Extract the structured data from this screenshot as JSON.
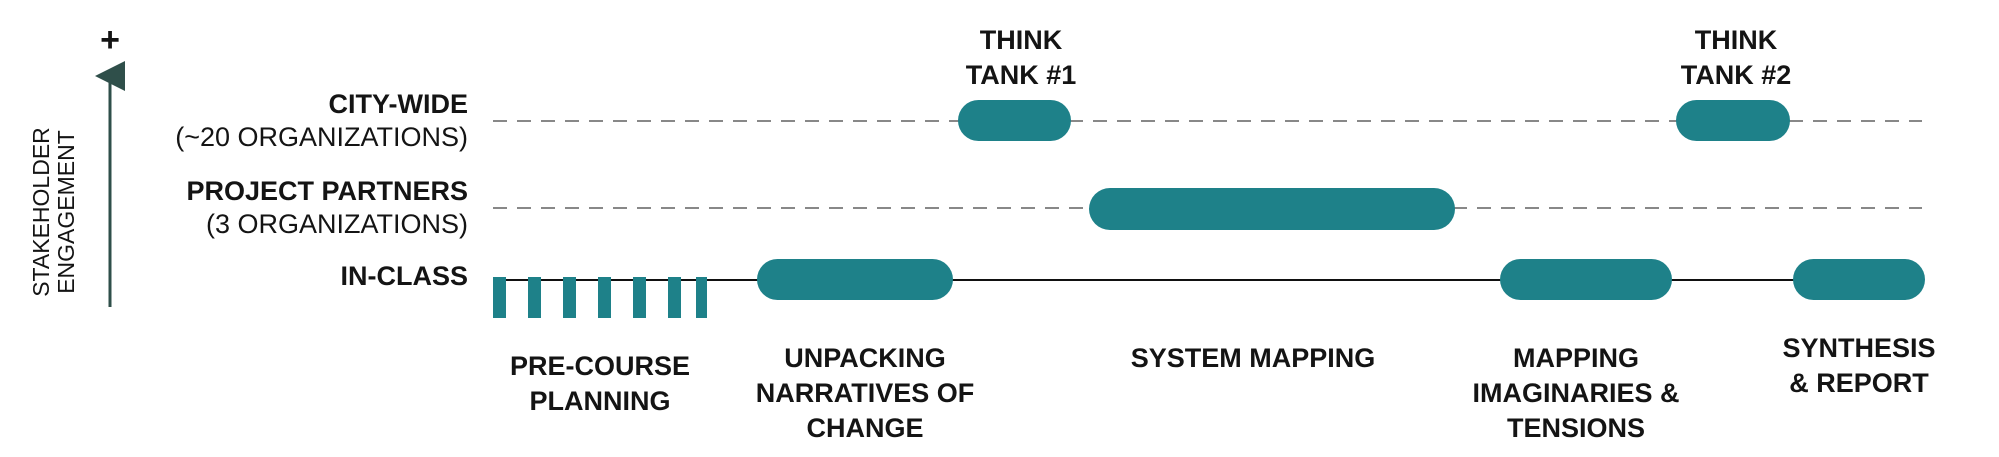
{
  "axis": {
    "plus": "+",
    "label": [
      "STAKEHOLDER",
      "ENGAGEMENT"
    ]
  },
  "rows": [
    {
      "label": "CITY-WIDE",
      "sublabel": "(~20 ORGANIZATIONS)"
    },
    {
      "label": "PROJECT PARTNERS",
      "sublabel": "(3 ORGANIZATIONS)"
    },
    {
      "label": "IN-CLASS"
    }
  ],
  "events": [
    {
      "lines": [
        "THINK",
        "TANK #1"
      ]
    },
    {
      "lines": [
        "THINK",
        "TANK #2"
      ]
    }
  ],
  "phases": [
    {
      "lines": [
        "PRE-COURSE",
        "PLANNING"
      ]
    },
    {
      "lines": [
        "UNPACKING",
        "NARRATIVES OF",
        "CHANGE"
      ]
    },
    {
      "lines": [
        "SYSTEM MAPPING"
      ]
    },
    {
      "lines": [
        "MAPPING",
        "IMAGINARIES &",
        "TENSIONS"
      ]
    },
    {
      "lines": [
        "SYNTHESIS",
        "& REPORT"
      ]
    }
  ]
}
